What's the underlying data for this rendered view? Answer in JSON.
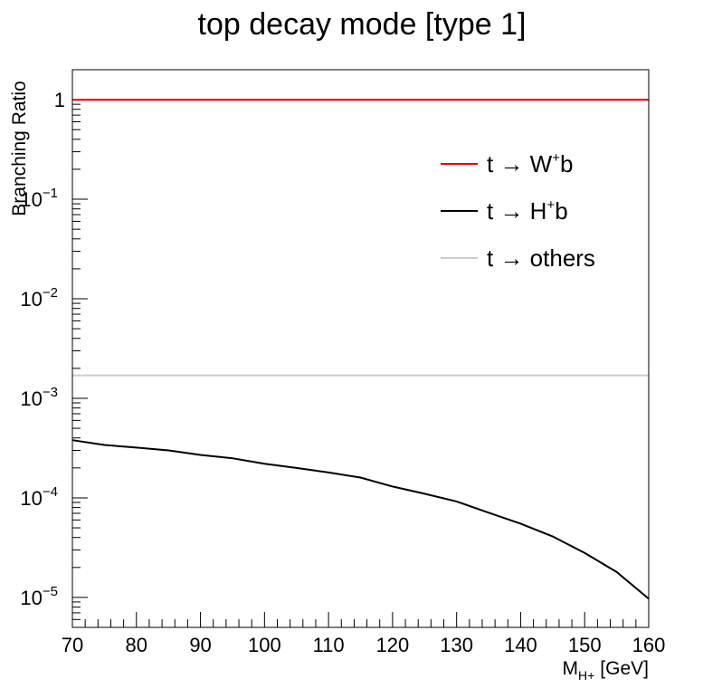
{
  "chart_data": {
    "type": "line",
    "title": "top decay mode [type 1]",
    "xlabel_main": "M",
    "xlabel_sub": "H+",
    "xlabel_unit": "[GeV]",
    "ylabel": "Branching Ratio",
    "xlim": [
      70,
      160
    ],
    "ylim": [
      5e-06,
      2
    ],
    "yscale": "log",
    "x_ticks": [
      70,
      80,
      90,
      100,
      110,
      120,
      130,
      140,
      150,
      160
    ],
    "y_ticks": [
      {
        "value": 1,
        "base": "1",
        "exp": ""
      },
      {
        "value": 0.1,
        "base": "10",
        "exp": "−1"
      },
      {
        "value": 0.01,
        "base": "10",
        "exp": "−2"
      },
      {
        "value": 0.001,
        "base": "10",
        "exp": "−3"
      },
      {
        "value": 0.0001,
        "base": "10",
        "exp": "−4"
      },
      {
        "value": 1e-05,
        "base": "10",
        "exp": "−5"
      }
    ],
    "legend_position": "top-right",
    "series": [
      {
        "name_pre": "t → W",
        "name_sup": "+",
        "name_post": "b",
        "color": "#dd0000",
        "x": [
          70,
          160
        ],
        "y": [
          0.998,
          0.998
        ]
      },
      {
        "name_pre": "t → H",
        "name_sup": "+",
        "name_post": "b",
        "color": "#000000",
        "x": [
          70,
          75,
          80,
          85,
          90,
          95,
          100,
          105,
          110,
          115,
          120,
          125,
          130,
          135,
          140,
          145,
          150,
          155,
          160
        ],
        "y": [
          0.00038,
          0.00034,
          0.00032,
          0.0003,
          0.00027,
          0.00025,
          0.00022,
          0.0002,
          0.00018,
          0.00016,
          0.00013,
          0.00011,
          9.2e-05,
          7.1e-05,
          5.5e-05,
          4.1e-05,
          2.8e-05,
          1.8e-05,
          9.7e-06
        ]
      },
      {
        "name_pre": "t → others",
        "name_sup": "",
        "name_post": "",
        "color": "#cccccc",
        "x": [
          70,
          160
        ],
        "y": [
          0.0017,
          0.0017
        ]
      }
    ]
  }
}
